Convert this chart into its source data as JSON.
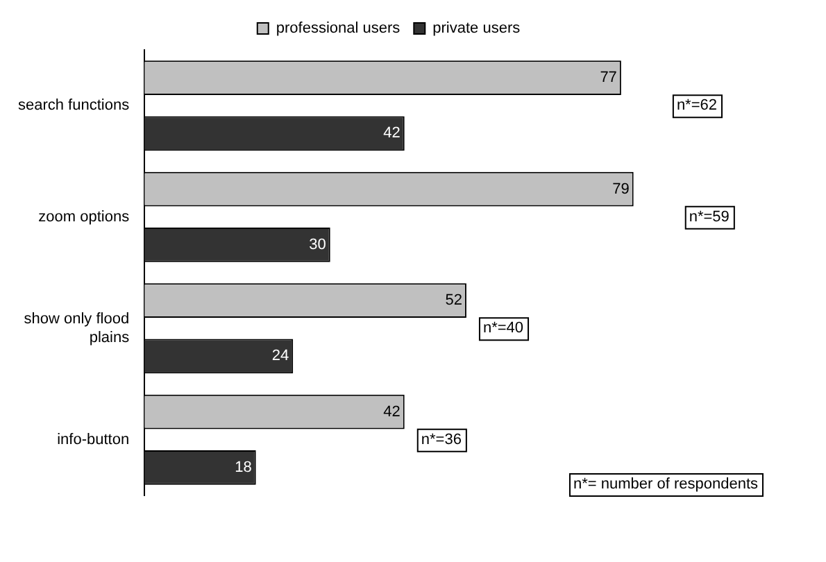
{
  "chart_data": {
    "type": "bar",
    "orientation": "horizontal",
    "categories": [
      "search functions",
      "zoom options",
      "show only flood plains",
      "info-button"
    ],
    "series": [
      {
        "name": "professional users",
        "color": "#c0c0c0",
        "values": [
          77,
          79,
          52,
          42
        ]
      },
      {
        "name": "private users",
        "color": "#333333",
        "values": [
          42,
          30,
          24,
          18
        ]
      }
    ],
    "xlim": [
      0,
      100
    ],
    "tick_labels": "y",
    "grid": false,
    "legend": "top",
    "data_labels": true,
    "annotations": [
      "n*=62",
      "n*=59",
      "n*=40",
      "n*=36",
      "n*= number of respondents"
    ]
  }
}
